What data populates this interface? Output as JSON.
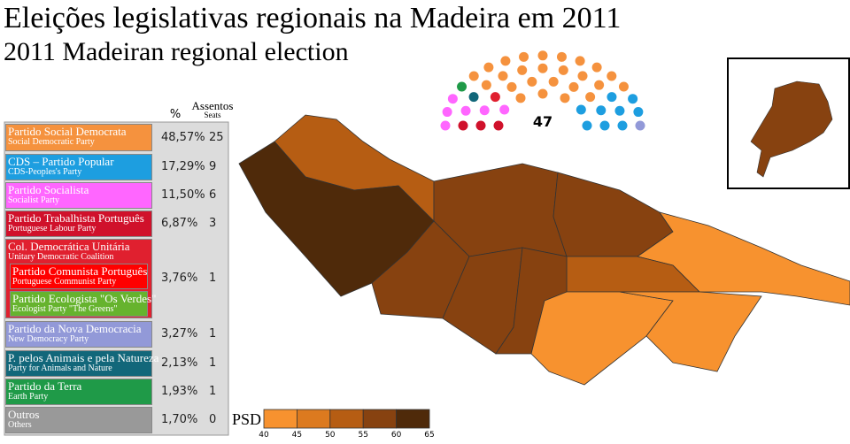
{
  "title": "Eleições legislativas regionais na Madeira em 2011",
  "subtitle": "2011 Madeiran regional election",
  "table": {
    "header": {
      "percent": "%",
      "seats": "Assentos",
      "seats_en": "Seats"
    },
    "parties": [
      {
        "name": "Partido Social Democrata",
        "name_en": "Social Democratic Party",
        "percent": "48,57%",
        "seats": 25,
        "color": "#f5923e"
      },
      {
        "name": "CDS – Partido Popular",
        "name_en": "CDS-Peoples's Party",
        "percent": "17,29%",
        "seats": 9,
        "color": "#1d9ee0"
      },
      {
        "name": "Partido Socialista",
        "name_en": "Socialist Party",
        "percent": "11,50%",
        "seats": 6,
        "color": "#ff66ff"
      },
      {
        "name": "Partido Trabalhista Português",
        "name_en": "Portuguese Labour Party",
        "percent": "6,87%",
        "seats": 3,
        "color": "#d0112b"
      },
      {
        "name": "Col. Democrática Unitária",
        "name_en": "Unitary Democratic Coalition",
        "percent": "3,76%",
        "seats": 1,
        "color": "#e0202f",
        "members": [
          {
            "name": "Partido Comunista Português",
            "name_en": "Portuguese Communist Party",
            "color": "#ff0000"
          },
          {
            "name": "Partido Ecologista \"Os Verdes\"",
            "name_en": "Ecologist Party \"The Greens\"",
            "color": "#66b32e"
          }
        ]
      },
      {
        "name": "Partido da Nova Democracia",
        "name_en": "New Democracy Party",
        "percent": "3,27%",
        "seats": 1,
        "color": "#9299d8"
      },
      {
        "name": "P. pelos Animais e pela Natureza",
        "name_en": "Party for Animals and Nature",
        "percent": "2,13%",
        "seats": 1,
        "color": "#12677a"
      },
      {
        "name": "Partido da Terra",
        "name_en": "Earth Party",
        "percent": "1,93%",
        "seats": 1,
        "color": "#1f9a48"
      },
      {
        "name": "Outros",
        "name_en": "Others",
        "percent": "1,70%",
        "seats": 0,
        "color": "#999999"
      }
    ]
  },
  "parliament": {
    "total": 47
  },
  "legend": {
    "label": "PSD",
    "ticks": [
      40,
      45,
      50,
      55,
      60,
      65
    ],
    "colors": [
      "#f7922f",
      "#dc7a1f",
      "#b65d13",
      "#874210",
      "#4f2a0a"
    ]
  }
}
